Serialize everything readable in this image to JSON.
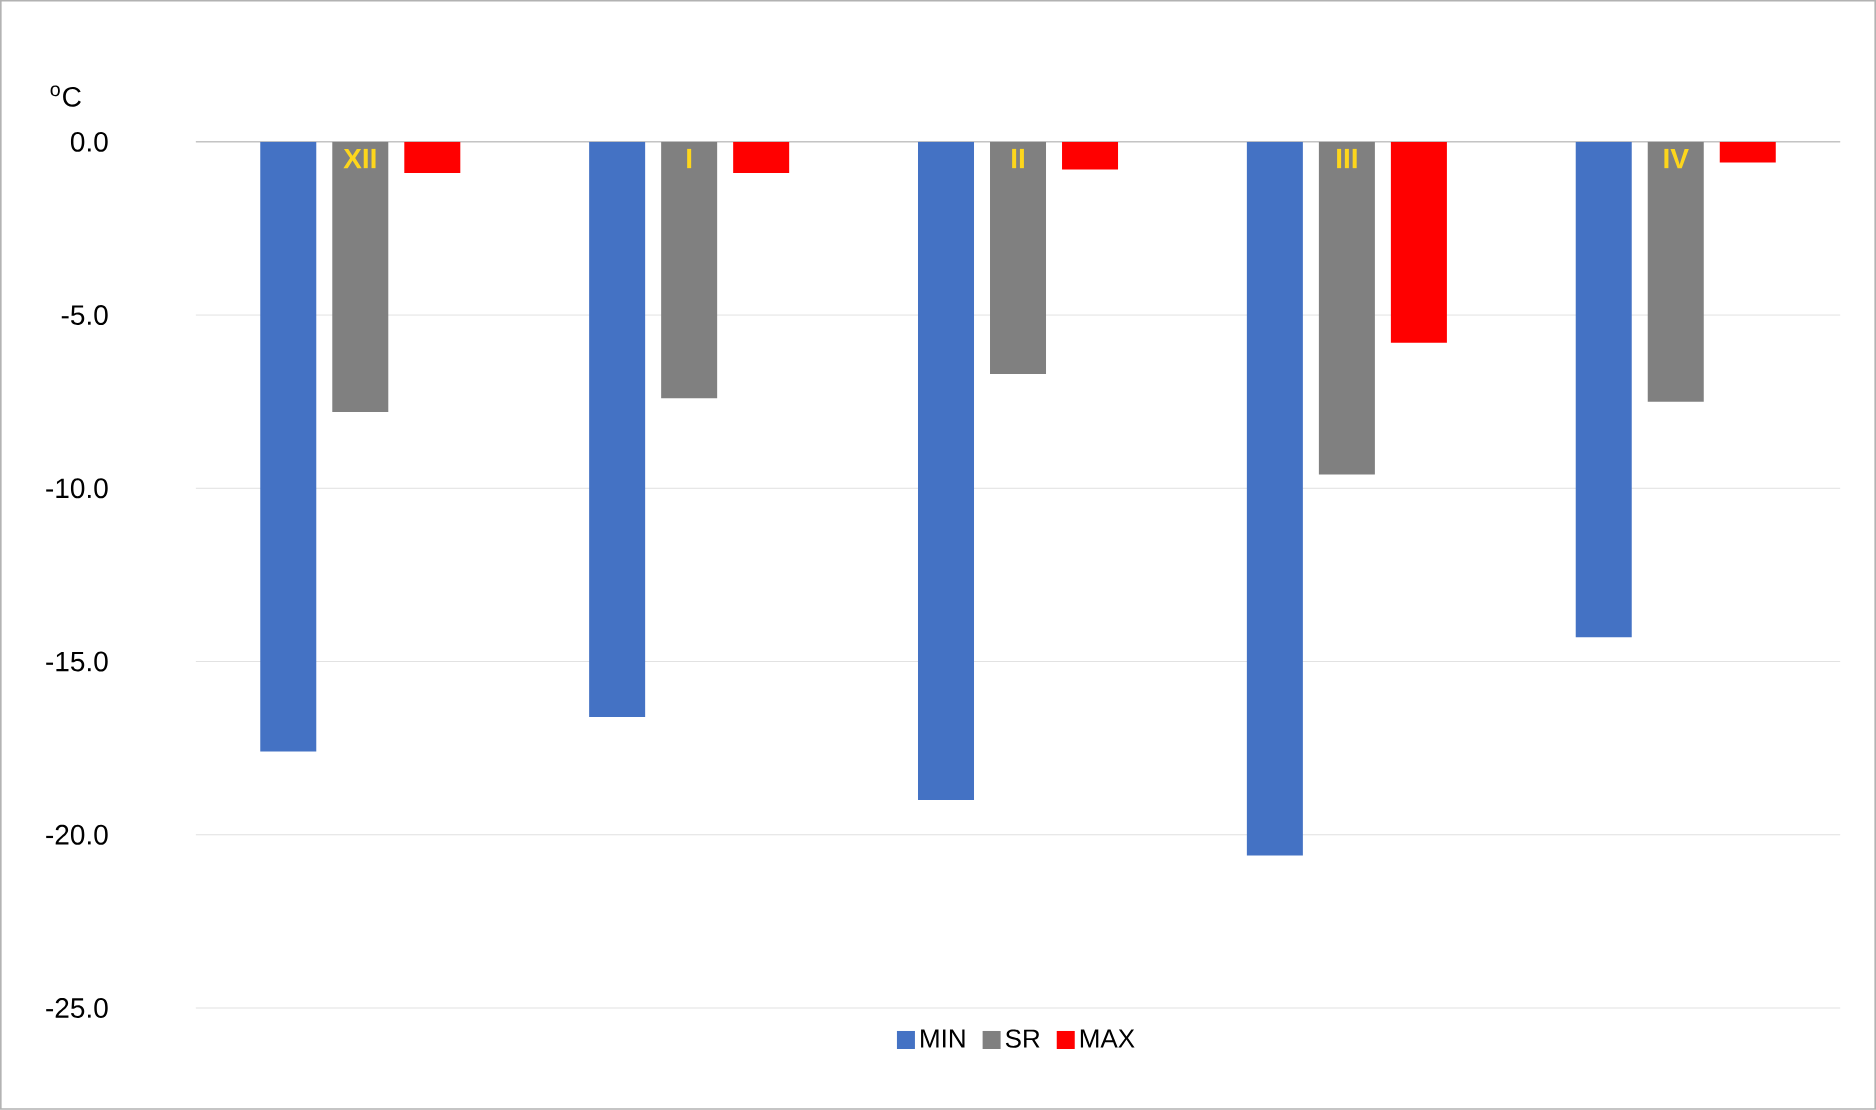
{
  "chart_data": {
    "type": "bar",
    "ylabel": "$^{o}$C",
    "categories": [
      "XII",
      "I",
      "II",
      "III",
      "IV"
    ],
    "series": [
      {
        "name": "MIN",
        "color": "#4472c4",
        "values": [
          -17.6,
          -16.6,
          -19.0,
          -20.6,
          -14.3
        ]
      },
      {
        "name": "SR",
        "color": "#808080",
        "values": [
          -7.8,
          -7.4,
          -6.7,
          -9.6,
          -7.5
        ]
      },
      {
        "name": "MAX",
        "color": "#ff0000",
        "values": [
          -0.9,
          -0.9,
          -0.8,
          -5.8,
          -0.6
        ]
      }
    ],
    "ylim": [
      -25,
      0
    ],
    "yticks": [
      {
        "value": 0,
        "label": "0.0"
      },
      {
        "value": -5,
        "label": "-5.0"
      },
      {
        "value": -10,
        "label": "-10.0"
      },
      {
        "value": -15,
        "label": "-15.0"
      },
      {
        "value": -20,
        "label": "-20.0"
      },
      {
        "value": -25,
        "label": "-25.0"
      }
    ],
    "grid": "y",
    "legend": "bottom"
  }
}
